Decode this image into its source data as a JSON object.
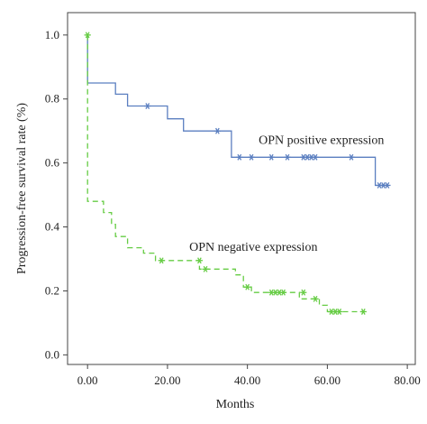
{
  "chart_data": {
    "type": "line",
    "xlabel": "Months",
    "ylabel": "Progression-free survival rate (%)",
    "xlim": [
      -5,
      82
    ],
    "ylim": [
      -0.03,
      1.07
    ],
    "xticks": [
      0,
      20,
      40,
      60,
      80
    ],
    "xtick_labels": [
      "0.00",
      "20.00",
      "40.00",
      "60.00",
      "80.00"
    ],
    "yticks": [
      0,
      0.2,
      0.4,
      0.6,
      0.8,
      1.0
    ],
    "ytick_labels": [
      "0.0",
      "0.2",
      "0.4",
      "0.6",
      "0.8",
      "1.0"
    ],
    "grid": false,
    "series": [
      {
        "name": "OPN positive expression",
        "color": "#5b7fc0",
        "dash": false,
        "steps": [
          [
            0,
            1.0
          ],
          [
            0,
            0.85
          ],
          [
            7,
            0.85
          ],
          [
            7,
            0.815
          ],
          [
            10,
            0.815
          ],
          [
            10,
            0.778
          ],
          [
            20,
            0.778
          ],
          [
            20,
            0.738
          ],
          [
            24,
            0.738
          ],
          [
            24,
            0.7
          ],
          [
            36,
            0.7
          ],
          [
            36,
            0.618
          ],
          [
            72,
            0.618
          ],
          [
            72,
            0.53
          ],
          [
            75,
            0.53
          ]
        ],
        "censored": [
          [
            15,
            0.778
          ],
          [
            32.5,
            0.7
          ],
          [
            38,
            0.618
          ],
          [
            41,
            0.618
          ],
          [
            46,
            0.618
          ],
          [
            50,
            0.618
          ],
          [
            54,
            0.618
          ],
          [
            55,
            0.618
          ],
          [
            56,
            0.618
          ],
          [
            57,
            0.618
          ],
          [
            66,
            0.618
          ],
          [
            73,
            0.53
          ],
          [
            74,
            0.53
          ],
          [
            75,
            0.53
          ]
        ]
      },
      {
        "name": "OPN negative expression",
        "color": "#66cc44",
        "dash": true,
        "steps": [
          [
            0,
            1.0
          ],
          [
            0,
            0.48
          ],
          [
            4,
            0.48
          ],
          [
            4,
            0.445
          ],
          [
            6,
            0.445
          ],
          [
            6,
            0.408
          ],
          [
            7,
            0.408
          ],
          [
            7,
            0.37
          ],
          [
            10,
            0.37
          ],
          [
            10,
            0.335
          ],
          [
            14,
            0.335
          ],
          [
            14,
            0.318
          ],
          [
            17,
            0.318
          ],
          [
            17,
            0.295
          ],
          [
            28,
            0.295
          ],
          [
            28,
            0.268
          ],
          [
            37,
            0.268
          ],
          [
            37,
            0.25
          ],
          [
            39,
            0.25
          ],
          [
            39,
            0.212
          ],
          [
            41,
            0.212
          ],
          [
            41,
            0.195
          ],
          [
            53,
            0.195
          ],
          [
            53,
            0.175
          ],
          [
            58,
            0.175
          ],
          [
            58,
            0.155
          ],
          [
            60,
            0.155
          ],
          [
            60,
            0.135
          ],
          [
            69,
            0.135
          ]
        ],
        "censored": [
          [
            0,
            1.0
          ],
          [
            18.5,
            0.295
          ],
          [
            28,
            0.295
          ],
          [
            29.5,
            0.268
          ],
          [
            40,
            0.212
          ],
          [
            46,
            0.195
          ],
          [
            47,
            0.195
          ],
          [
            48,
            0.195
          ],
          [
            49,
            0.195
          ],
          [
            54,
            0.195
          ],
          [
            57,
            0.175
          ],
          [
            61,
            0.135
          ],
          [
            62,
            0.135
          ],
          [
            63,
            0.135
          ],
          [
            69,
            0.135
          ]
        ]
      }
    ],
    "annotations": [
      {
        "text": "OPN positive expression",
        "x": 58.5,
        "y": 0.66,
        "series": 0
      },
      {
        "text": "OPN negative expression",
        "x": 41.5,
        "y": 0.325,
        "series": 1
      }
    ]
  }
}
